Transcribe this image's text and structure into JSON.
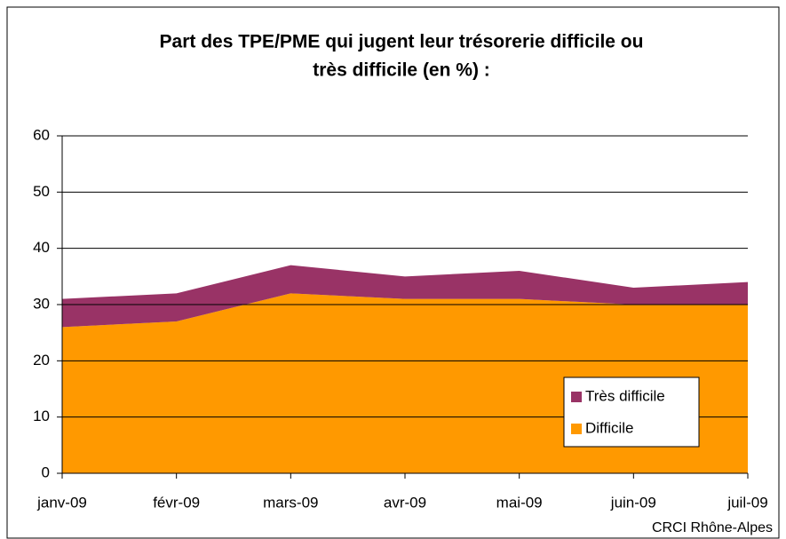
{
  "chart_data": {
    "type": "stacked_area",
    "title": [
      "Part des TPE/PME qui jugent leur trésorerie difficile ou",
      "très difficile (en %) :"
    ],
    "categories": [
      "janv-09",
      "févr-09",
      "mars-09",
      "avr-09",
      "mai-09",
      "juin-09",
      "juil-09"
    ],
    "series": [
      {
        "name": "Difficile",
        "color": "#FF9900",
        "values": [
          26,
          27,
          32,
          31,
          31,
          30,
          30
        ]
      },
      {
        "name": "Très difficile",
        "color": "#993366",
        "values": [
          5,
          5,
          5,
          4,
          5,
          3,
          4
        ]
      }
    ],
    "ylim": [
      0,
      60
    ],
    "yticks": [
      0,
      10,
      20,
      30,
      40,
      50,
      60
    ],
    "grid": true,
    "legend": "lower right",
    "source": "CRCI Rhône-Alpes"
  }
}
